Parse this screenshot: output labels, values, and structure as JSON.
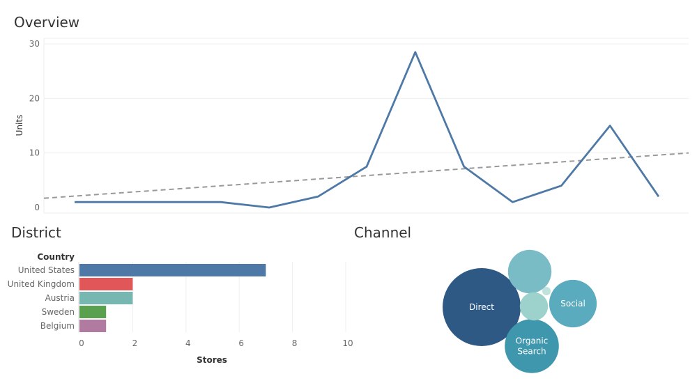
{
  "sections": {
    "overview": "Overview",
    "district": "District",
    "channel": "Channel"
  },
  "chart_data": [
    {
      "type": "line",
      "title": "Overview",
      "xlabel": "",
      "ylabel": "Units",
      "ylim": [
        0,
        30
      ],
      "yticks": [
        "0",
        "10",
        "20",
        "30"
      ],
      "series": [
        {
          "values": [
            1,
            1,
            1,
            1,
            0,
            2,
            7.5,
            28.5,
            7.5,
            1,
            4,
            15,
            2
          ],
          "color": "#4e79a7"
        }
      ],
      "trend": {
        "start": 1.7,
        "end": 10,
        "color": "#999999",
        "style": "dashed"
      },
      "grid": true
    },
    {
      "type": "bar",
      "orientation": "horizontal",
      "title": "District",
      "category_header": "Country",
      "xlabel": "Stores",
      "xlim": [
        0,
        10
      ],
      "xticks": [
        "0",
        "2",
        "4",
        "6",
        "8",
        "10"
      ],
      "categories": [
        "United States",
        "United Kingdom",
        "Austria",
        "Sweden",
        "Belgium"
      ],
      "values": [
        7,
        2,
        2,
        1,
        1
      ],
      "colors": [
        "#4e79a7",
        "#e15759",
        "#76b7b2",
        "#59a14f",
        "#b07aa1"
      ]
    },
    {
      "type": "bubble",
      "title": "Channel",
      "bubbles": [
        {
          "label": "Direct",
          "value": 100,
          "color": "#2f5985"
        },
        {
          "label": "Organic Search",
          "value": 48,
          "color": "#3f97ad"
        },
        {
          "label": "Social",
          "value": 37,
          "color": "#59abbd"
        },
        {
          "label": "",
          "value": 31,
          "color": "#79bcc6"
        },
        {
          "label": "",
          "value": 13,
          "color": "#9dd1cb"
        },
        {
          "label": "",
          "value": 1,
          "color": "#bfe3dc"
        }
      ]
    }
  ]
}
